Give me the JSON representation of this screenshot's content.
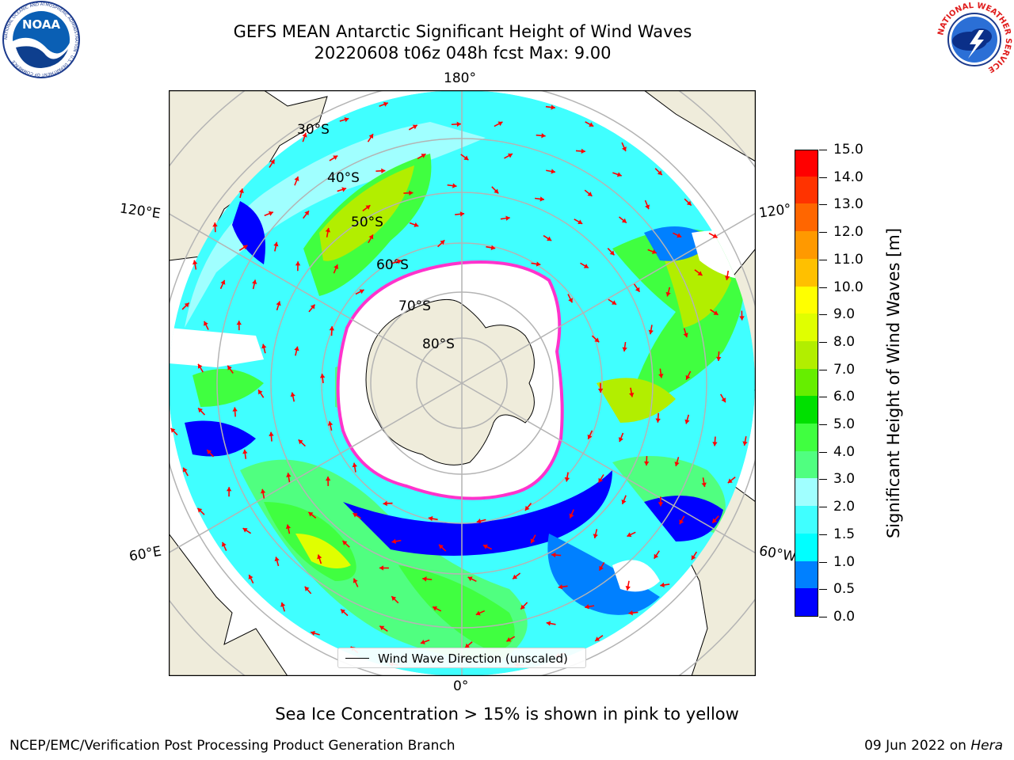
{
  "header": {
    "title_line1": "GEFS MEAN Antarctic Significant Height of Wind Waves",
    "title_line2": "20220608 t06z 048h fcst   Max: 9.00"
  },
  "logos": {
    "noaa": {
      "text": "NOAA",
      "ring_text": "NATIONAL OCEANIC AND ATMOSPHERIC ADMINISTRATION · U.S. DEPARTMENT OF COMMERCE"
    },
    "nws": {
      "ring_text": "NATIONAL WEATHER SERVICE"
    }
  },
  "map": {
    "projection": "south-polar-stereographic",
    "longitude_labels": {
      "top": "180°",
      "bottom": "0°",
      "left_upper": "120°E",
      "left_lower": "60°E",
      "right_upper": "120°",
      "right_lower": "60°W"
    },
    "latitude_labels": [
      "30°S",
      "40°S",
      "50°S",
      "60°S",
      "70°S",
      "80°S"
    ],
    "legend_label": "Wind Wave Direction (unscaled)",
    "colors": {
      "land": "#efecdb",
      "ice_fill": "#ffffff",
      "ice_edge": "#ff33cc",
      "arrows": "#ff0000",
      "grid": "#b4b4b4"
    }
  },
  "colorbar": {
    "title": "Significant Height of Wind Waves [m]",
    "ticks": [
      "0.0",
      "0.5",
      "1.0",
      "1.5",
      "2.0",
      "3.0",
      "4.0",
      "5.0",
      "6.0",
      "7.0",
      "8.0",
      "9.0",
      "10.0",
      "11.0",
      "12.0",
      "13.0",
      "14.0",
      "15.0"
    ],
    "colors": [
      "#0000ff",
      "#0080ff",
      "#00ffff",
      "#40ffff",
      "#a0ffff",
      "#50ff80",
      "#40ff40",
      "#00e000",
      "#66ee00",
      "#b2ee00",
      "#e0ff00",
      "#ffff00",
      "#ffc000",
      "#ff9900",
      "#ff6600",
      "#ff3300",
      "#ff0000"
    ]
  },
  "footer": {
    "ice_note": "Sea Ice Concentration > 15% is shown in pink to yellow",
    "left": "NCEP/EMC/Verification Post Processing Product Generation Branch",
    "right_prefix": "09 Jun 2022 on ",
    "right_host": "Hera"
  }
}
